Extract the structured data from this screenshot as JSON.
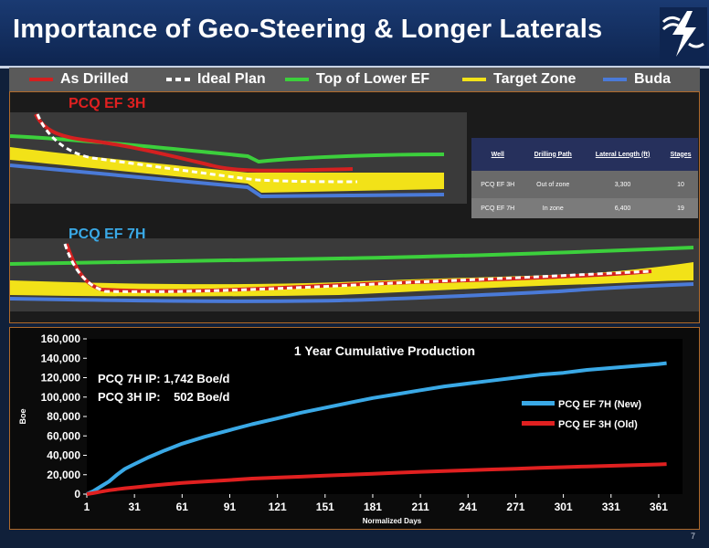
{
  "slide": {
    "title": "Importance of Geo-Steering & Longer Laterals",
    "page_number": "7"
  },
  "legend": [
    {
      "label": "As Drilled",
      "color": "#d42020",
      "style": "solid"
    },
    {
      "label": "Ideal Plan",
      "color": "#ffffff",
      "style": "dashed"
    },
    {
      "label": "Top of Lower EF",
      "color": "#3ccf3c",
      "style": "solid"
    },
    {
      "label": "Target Zone",
      "color": "#f2e218",
      "style": "solid"
    },
    {
      "label": "Buda",
      "color": "#4a7ad8",
      "style": "solid"
    }
  ],
  "wells_diagram": {
    "well_3h_label": "PCQ EF 3H",
    "well_7h_label": "PCQ EF 7H",
    "well_3h_color": "#e02020",
    "well_7h_color": "#3aa9e6"
  },
  "well_table": {
    "headers": [
      "Well",
      "Drilling Path",
      "Lateral Length (ft)",
      "Stages"
    ],
    "rows": [
      [
        "PCQ EF 3H",
        "Out of zone",
        "3,300",
        "10"
      ],
      [
        "PCQ EF 7H",
        "In zone",
        "6,400",
        "19"
      ]
    ]
  },
  "chart_data": {
    "type": "line",
    "title": "1 Year Cumulative Production",
    "xlabel": "Normalized Days",
    "ylabel": "Boe",
    "xlim": [
      1,
      376
    ],
    "ylim": [
      0,
      160000
    ],
    "xticks": [
      "1",
      "31",
      "61",
      "91",
      "121",
      "151",
      "181",
      "211",
      "241",
      "271",
      "301",
      "331",
      "361"
    ],
    "yticks": [
      "0",
      "20,000",
      "40,000",
      "60,000",
      "80,000",
      "100,000",
      "120,000",
      "140,000",
      "160,000"
    ],
    "grid": false,
    "legend_position": "right",
    "annotations": [
      "PCQ 7H IP: 1,742 Boe/d",
      "PCQ 3H IP:    502 Boe/d"
    ],
    "series": [
      {
        "name": "PCQ EF 7H (New)",
        "color": "#3aa9e6",
        "x": [
          1,
          5,
          10,
          15,
          20,
          25,
          31,
          40,
          50,
          61,
          75,
          91,
          105,
          121,
          136,
          151,
          166,
          181,
          196,
          211,
          226,
          241,
          256,
          271,
          286,
          301,
          316,
          331,
          346,
          361,
          366
        ],
        "y": [
          0,
          3000,
          8000,
          13000,
          20000,
          26000,
          31000,
          38000,
          45000,
          52000,
          59000,
          66000,
          72000,
          78000,
          84000,
          89000,
          94000,
          99000,
          103000,
          107000,
          111000,
          114000,
          117000,
          120000,
          123000,
          125000,
          128000,
          130000,
          132000,
          134000,
          135000
        ]
      },
      {
        "name": "PCQ EF 3H (Old)",
        "color": "#e02020",
        "x": [
          1,
          5,
          10,
          15,
          20,
          25,
          31,
          40,
          50,
          61,
          75,
          91,
          105,
          121,
          136,
          151,
          166,
          181,
          196,
          211,
          226,
          241,
          256,
          271,
          286,
          301,
          316,
          331,
          346,
          361,
          366
        ],
        "y": [
          0,
          1000,
          2500,
          4000,
          5000,
          6000,
          7000,
          8500,
          10000,
          11500,
          13000,
          14500,
          16000,
          17000,
          18000,
          19000,
          20000,
          21000,
          22000,
          23000,
          23800,
          24600,
          25400,
          26200,
          27000,
          27800,
          28500,
          29200,
          29900,
          30600,
          31000
        ]
      }
    ]
  }
}
